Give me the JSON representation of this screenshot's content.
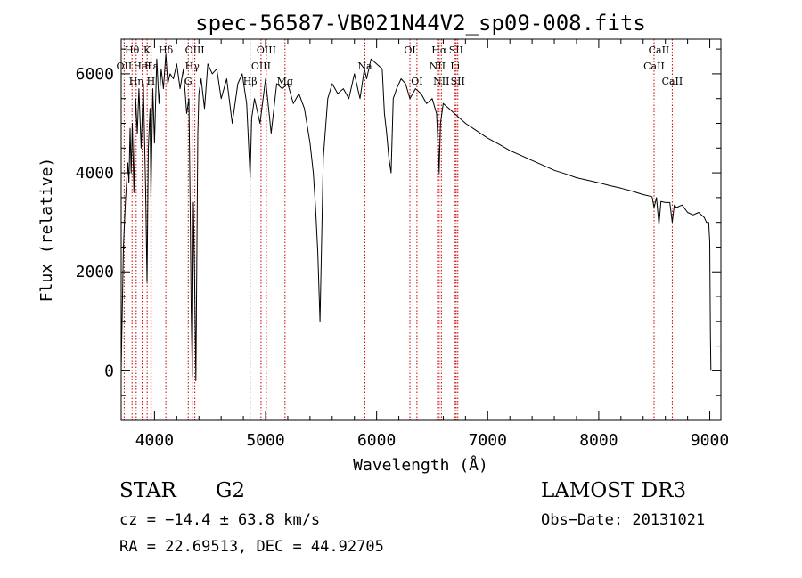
{
  "chart_data": {
    "type": "line",
    "title": "spec-56587-VB021N44V2_sp09-008.fits",
    "xlabel": "Wavelength (Å)",
    "ylabel": "Flux (relative)",
    "xlim": [
      3700,
      9100
    ],
    "ylim": [
      -1000,
      6700
    ],
    "xticks": [
      4000,
      5000,
      6000,
      7000,
      8000,
      9000
    ],
    "yticks": [
      0,
      2000,
      4000,
      6000
    ],
    "series": [
      {
        "name": "spectrum",
        "x": [
          3700,
          3720,
          3740,
          3760,
          3770,
          3780,
          3790,
          3800,
          3815,
          3830,
          3845,
          3860,
          3880,
          3900,
          3920,
          3933,
          3945,
          3960,
          3968,
          3985,
          4000,
          4020,
          4040,
          4060,
          4080,
          4102,
          4120,
          4140,
          4170,
          4200,
          4230,
          4260,
          4290,
          4310,
          4320,
          4330,
          4340,
          4350,
          4360,
          4372,
          4384,
          4390,
          4400,
          4420,
          4450,
          4480,
          4520,
          4560,
          4600,
          4650,
          4700,
          4750,
          4790,
          4830,
          4861,
          4875,
          4900,
          4950,
          5000,
          5050,
          5100,
          5150,
          5200,
          5250,
          5300,
          5350,
          5400,
          5430,
          5450,
          5470,
          5490,
          5520,
          5560,
          5600,
          5650,
          5700,
          5750,
          5800,
          5850,
          5890,
          5910,
          5950,
          6000,
          6050,
          6070,
          6090,
          6110,
          6130,
          6150,
          6180,
          6220,
          6260,
          6300,
          6350,
          6400,
          6450,
          6500,
          6540,
          6555,
          6563,
          6575,
          6600,
          6650,
          6700,
          6800,
          6900,
          7000,
          7100,
          7200,
          7300,
          7400,
          7500,
          7600,
          7700,
          7800,
          7900,
          8000,
          8100,
          8200,
          8300,
          8400,
          8480,
          8498,
          8520,
          8542,
          8560,
          8600,
          8640,
          8662,
          8680,
          8700,
          8750,
          8800,
          8850,
          8900,
          8950,
          8970,
          8990,
          9000,
          9005,
          9010
        ],
        "y": [
          0,
          2500,
          3500,
          4200,
          3800,
          4900,
          4000,
          5000,
          3600,
          5500,
          4800,
          5700,
          4500,
          5800,
          3700,
          1800,
          4500,
          5300,
          3500,
          5700,
          4600,
          6300,
          5400,
          6100,
          5700,
          6400,
          5800,
          6000,
          5900,
          6200,
          5700,
          6100,
          5200,
          5500,
          3500,
          1300,
          -100,
          3400,
          2000,
          -200,
          3000,
          4800,
          5600,
          5900,
          5300,
          6200,
          6000,
          6100,
          5500,
          5900,
          5000,
          5800,
          6000,
          5400,
          3900,
          5100,
          5500,
          5000,
          5900,
          4800,
          5800,
          5700,
          5800,
          5400,
          5600,
          5300,
          4600,
          4000,
          3300,
          2400,
          1000,
          4300,
          5500,
          5800,
          5600,
          5700,
          5500,
          6000,
          5500,
          6100,
          5900,
          6300,
          6200,
          6100,
          5200,
          4800,
          4300,
          4000,
          5500,
          5700,
          5900,
          5800,
          5500,
          5700,
          5600,
          5400,
          5500,
          5200,
          4500,
          4000,
          5000,
          5400,
          5300,
          5200,
          5000,
          4850,
          4700,
          4580,
          4450,
          4350,
          4250,
          4150,
          4050,
          3980,
          3900,
          3850,
          3800,
          3740,
          3690,
          3630,
          3560,
          3520,
          3300,
          3500,
          2950,
          3420,
          3400,
          3400,
          3000,
          3350,
          3300,
          3350,
          3200,
          3150,
          3200,
          3100,
          3000,
          3000,
          2600,
          800,
          0
        ]
      }
    ],
    "lines": [
      {
        "name": "OII",
        "x": 3727,
        "row": 1
      },
      {
        "name": "Hθ",
        "x": 3798,
        "row": 0
      },
      {
        "name": "Hη",
        "x": 3835,
        "row": 2
      },
      {
        "name": "HeI",
        "x": 3889,
        "row": 1
      },
      {
        "name": "K",
        "x": 3934,
        "row": 0
      },
      {
        "name": "H",
        "x": 3968,
        "row": 2
      },
      {
        "name": "Hε",
        "x": 3970,
        "row": 1
      },
      {
        "name": "Hδ",
        "x": 4102,
        "row": 0
      },
      {
        "name": "G",
        "x": 4304,
        "row": 2
      },
      {
        "name": "Hγ",
        "x": 4340,
        "row": 1
      },
      {
        "name": "OIII",
        "x": 4363,
        "row": 0
      },
      {
        "name": "Hβ",
        "x": 4861,
        "row": 2
      },
      {
        "name": "OIII",
        "x": 4959,
        "row": 1
      },
      {
        "name": "OIII",
        "x": 5007,
        "row": 0
      },
      {
        "name": "Mg",
        "x": 5175,
        "row": 2
      },
      {
        "name": "Na",
        "x": 5894,
        "row": 1
      },
      {
        "name": "OI",
        "x": 6300,
        "row": 0
      },
      {
        "name": "OI",
        "x": 6363,
        "row": 2
      },
      {
        "name": "NII",
        "x": 6548,
        "row": 1
      },
      {
        "name": "Hα",
        "x": 6563,
        "row": 0
      },
      {
        "name": "NII",
        "x": 6583,
        "row": 2
      },
      {
        "name": "Li",
        "x": 6707,
        "row": 1
      },
      {
        "name": "SII",
        "x": 6716,
        "row": 0
      },
      {
        "name": "SII",
        "x": 6731,
        "row": 2
      },
      {
        "name": "CaII",
        "x": 8498,
        "row": 1
      },
      {
        "name": "CaII",
        "x": 8542,
        "row": 0
      },
      {
        "name": "CaII",
        "x": 8662,
        "row": 2
      }
    ]
  },
  "info": {
    "object_class": "STAR",
    "subclass": "G2",
    "survey": "LAMOST DR3",
    "cz": "cz = −14.4 ± 63.8 km/s",
    "obs_date": "Obs−Date: 20131021",
    "coords": "RA =  22.69513, DEC =  44.92705"
  },
  "colors": {
    "spectrum": "#000000",
    "marker_line": "#cc0000",
    "axis": "#000000"
  }
}
